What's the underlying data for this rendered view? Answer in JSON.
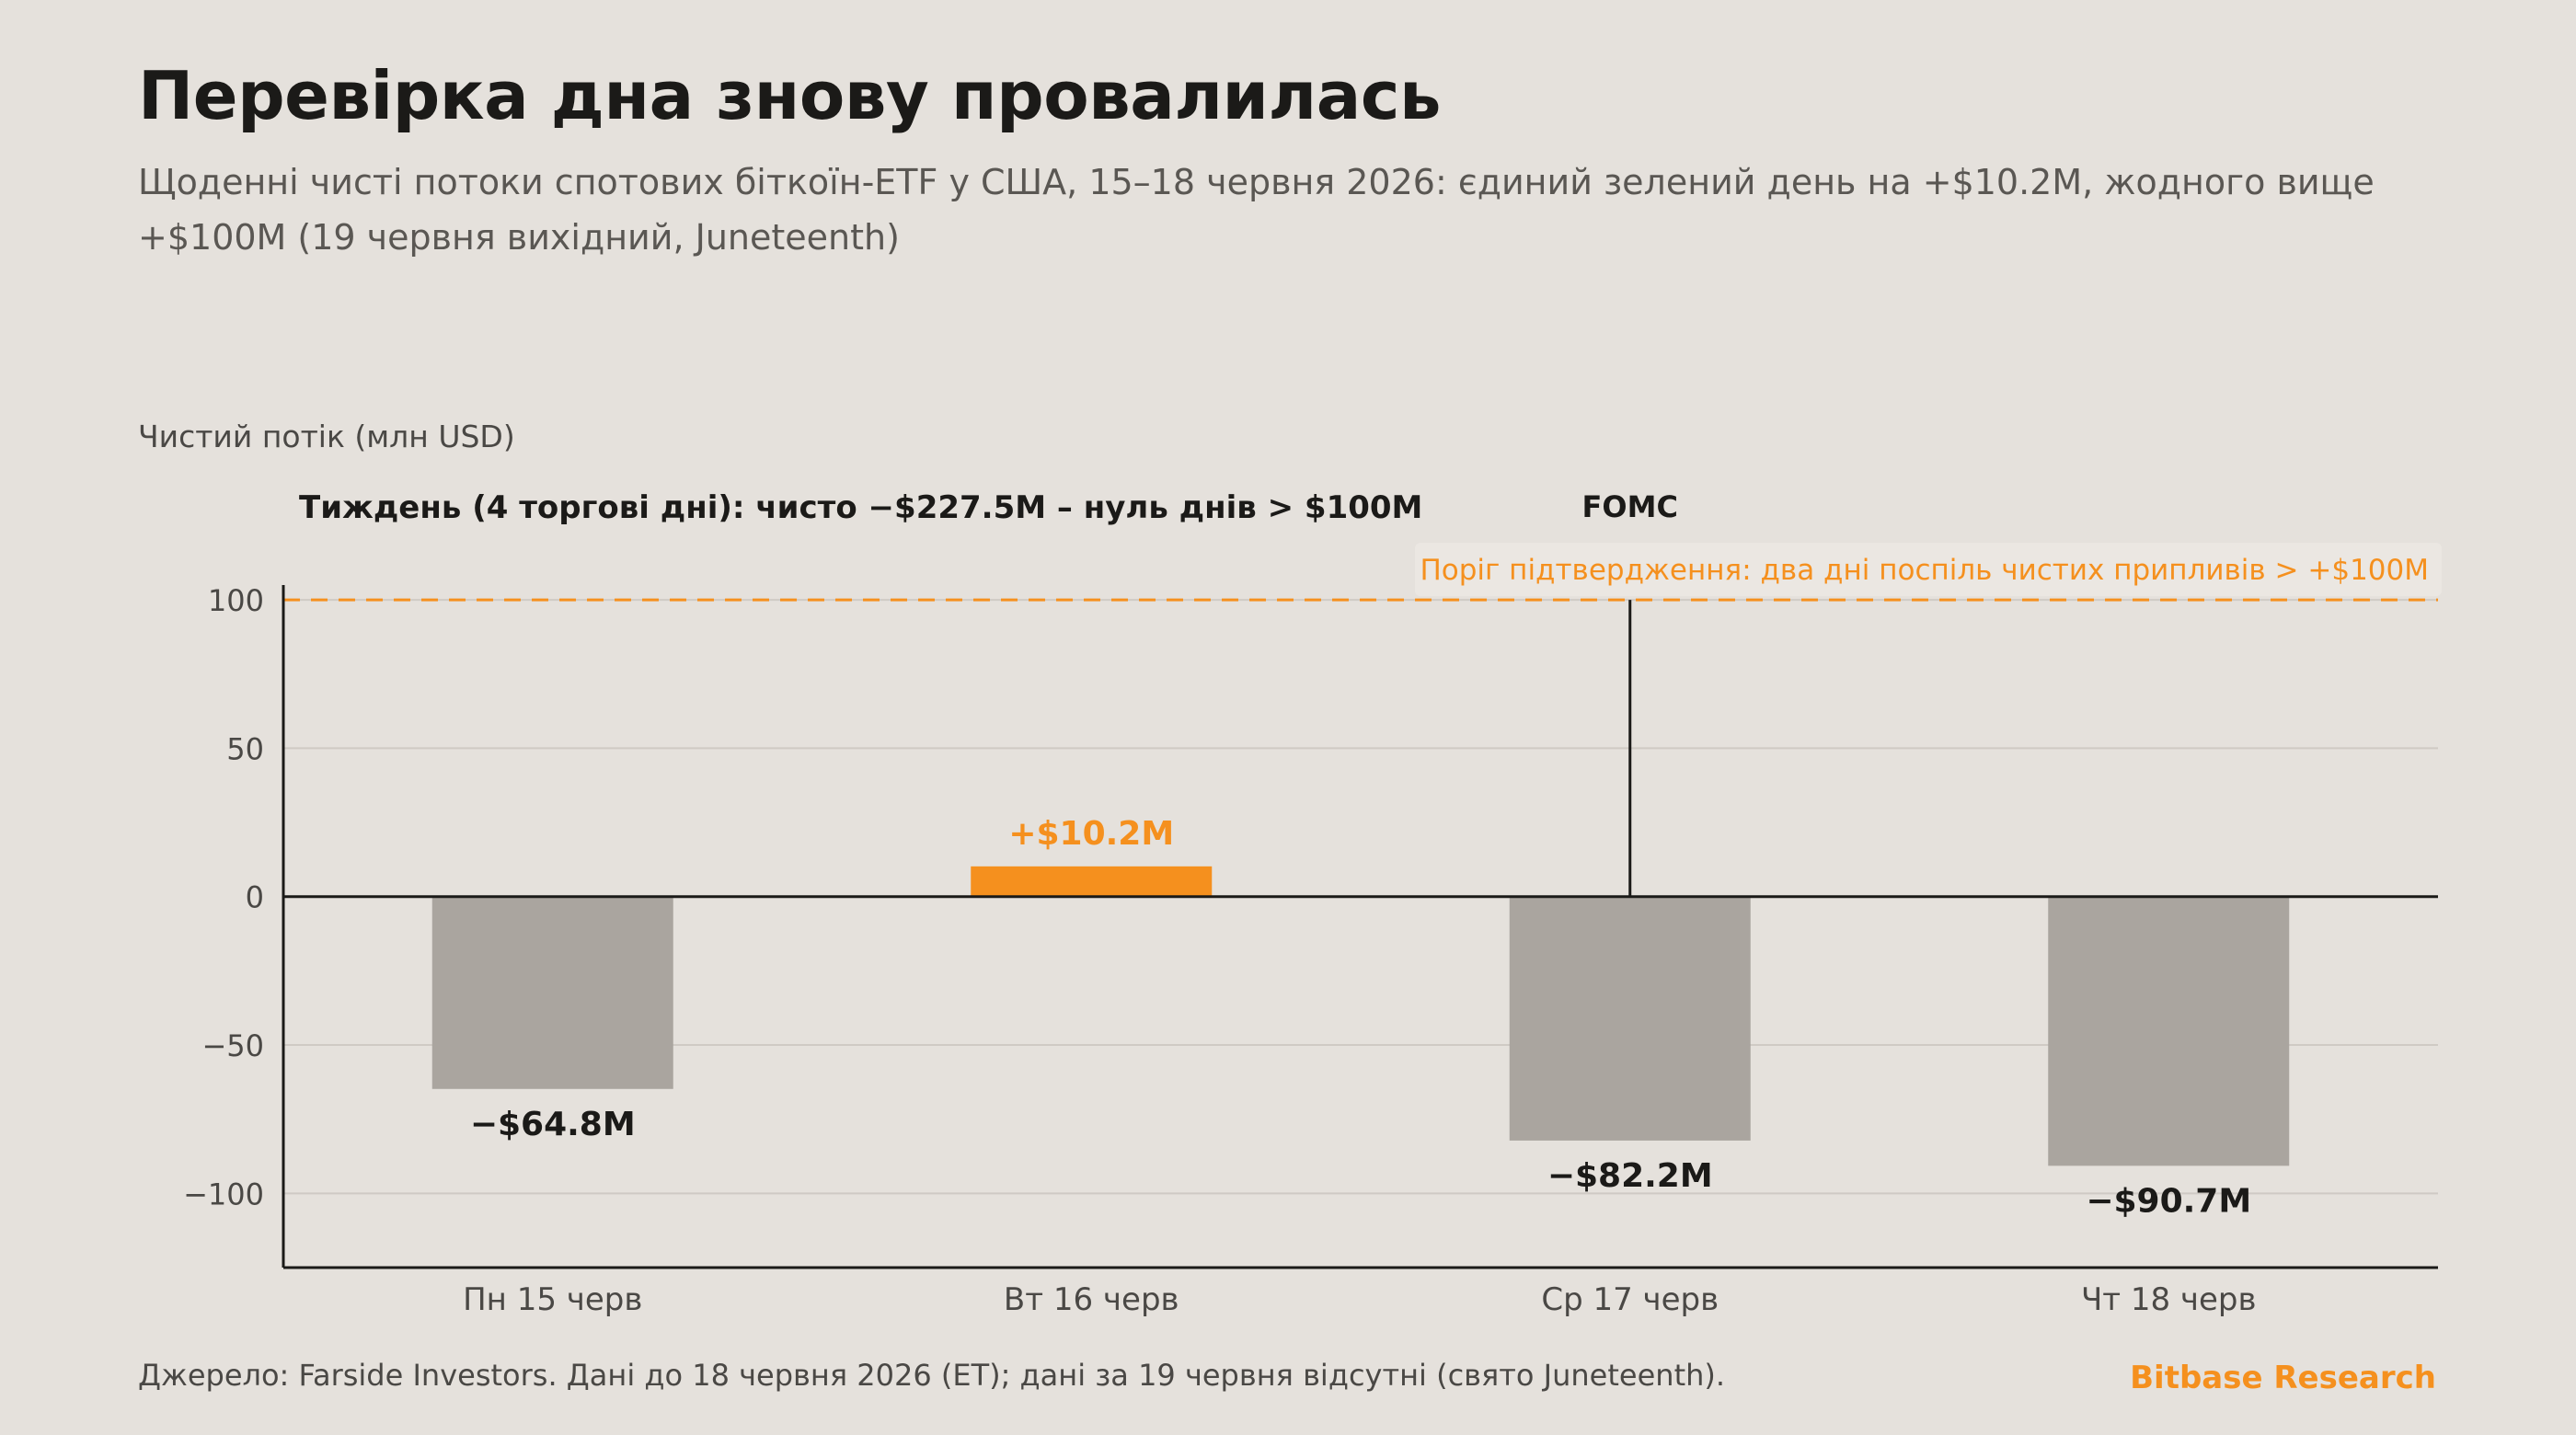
{
  "header": {
    "title": "Перевірка дна знову провалилась",
    "subtitle": "Щоденні чисті потоки спотових біткоїн-ETF у США, 15–18 червня 2026: єдиний зелений день на +$10.2M, жодного вище +$100M (19 червня вихідний, Juneteenth)"
  },
  "footer": {
    "source": "Джерело: Farside Investors. Дані до 18 червня 2026 (ET); дані за 19 червня відсутні (свято Juneteenth).",
    "brand": "Bitbase Research"
  },
  "colors": {
    "background": "#e5e1dc",
    "negative_bar": "#aaa59f",
    "positive_bar": "#f5901e",
    "accent": "#f5901e",
    "axis": "#1b1a18"
  },
  "chart_data": {
    "type": "bar",
    "ylabel": "Чистий потік (млн USD)",
    "ylim": [
      -125,
      105
    ],
    "yticks": [
      100,
      50,
      0,
      -50,
      -100
    ],
    "yticklabels": [
      "100",
      "50",
      "0",
      "−50",
      "−100"
    ],
    "grid": true,
    "categories": [
      "Пн 15 черв",
      "Вт 16 черв",
      "Ср 17 черв",
      "Чт 18 черв"
    ],
    "values": [
      -64.8,
      10.2,
      -82.2,
      -90.7
    ],
    "data_labels": [
      "−$64.8M",
      "+$10.2M",
      "−$82.2M",
      "−$90.7M"
    ],
    "week_summary": "Тиждень (4 торгові дні): чисто −$227.5M – нуль днів > $100M",
    "threshold": {
      "value": 100,
      "label": "Поріг підтвердження: два дні поспіль чистих припливів > +$100M"
    },
    "event_marker": {
      "category": "Ср 17 черв",
      "label": "FOMC"
    }
  }
}
